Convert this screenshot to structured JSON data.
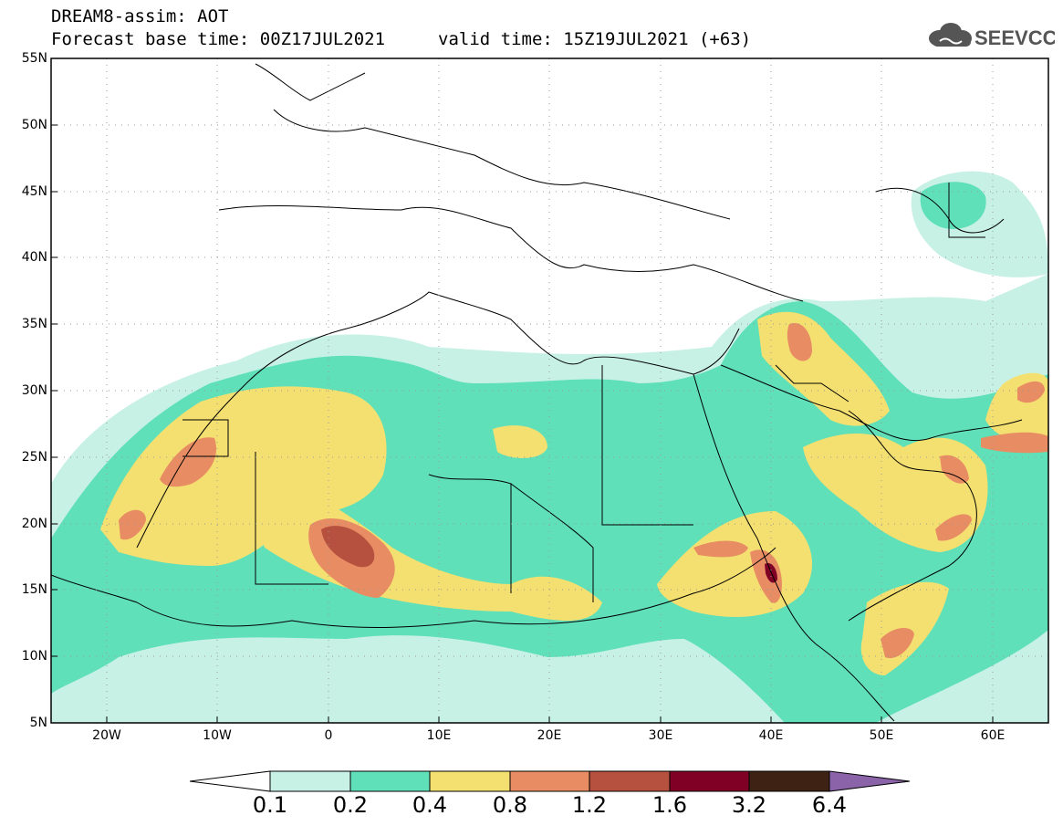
{
  "header": {
    "title": "DREAM8-assim: AOT",
    "base_time": "Forecast base time: 00Z17JUL2021",
    "valid_time": "valid time: 15Z19JUL2021 (+63)",
    "logo_text": "SEEVCCC",
    "logo_icon": "cloud-icon"
  },
  "map": {
    "lon_range": [
      -25,
      65
    ],
    "lat_range": [
      5,
      55
    ],
    "lat_ticks": [
      "55N",
      "50N",
      "45N",
      "40N",
      "35N",
      "30N",
      "25N",
      "20N",
      "15N",
      "10N",
      "5N"
    ],
    "lon_ticks": [
      "20W",
      "10W",
      "0",
      "10E",
      "20E",
      "30E",
      "40E",
      "50E",
      "60E"
    ],
    "grid": "dotted"
  },
  "colorbar": {
    "levels": [
      "0.1",
      "0.2",
      "0.4",
      "0.8",
      "1.2",
      "1.6",
      "3.2",
      "6.4"
    ],
    "colors": [
      "#c8f1e6",
      "#5fe0b8",
      "#f4e071",
      "#e88c64",
      "#b5513e",
      "#800025",
      "#3e2314",
      "#8a63a8"
    ],
    "extend": "both"
  },
  "colors": {
    "c01": "#c8f1e6",
    "c02": "#5fe0b8",
    "c04": "#f4e071",
    "c08": "#e88c64",
    "c12": "#b5513e",
    "c16": "#800025"
  }
}
